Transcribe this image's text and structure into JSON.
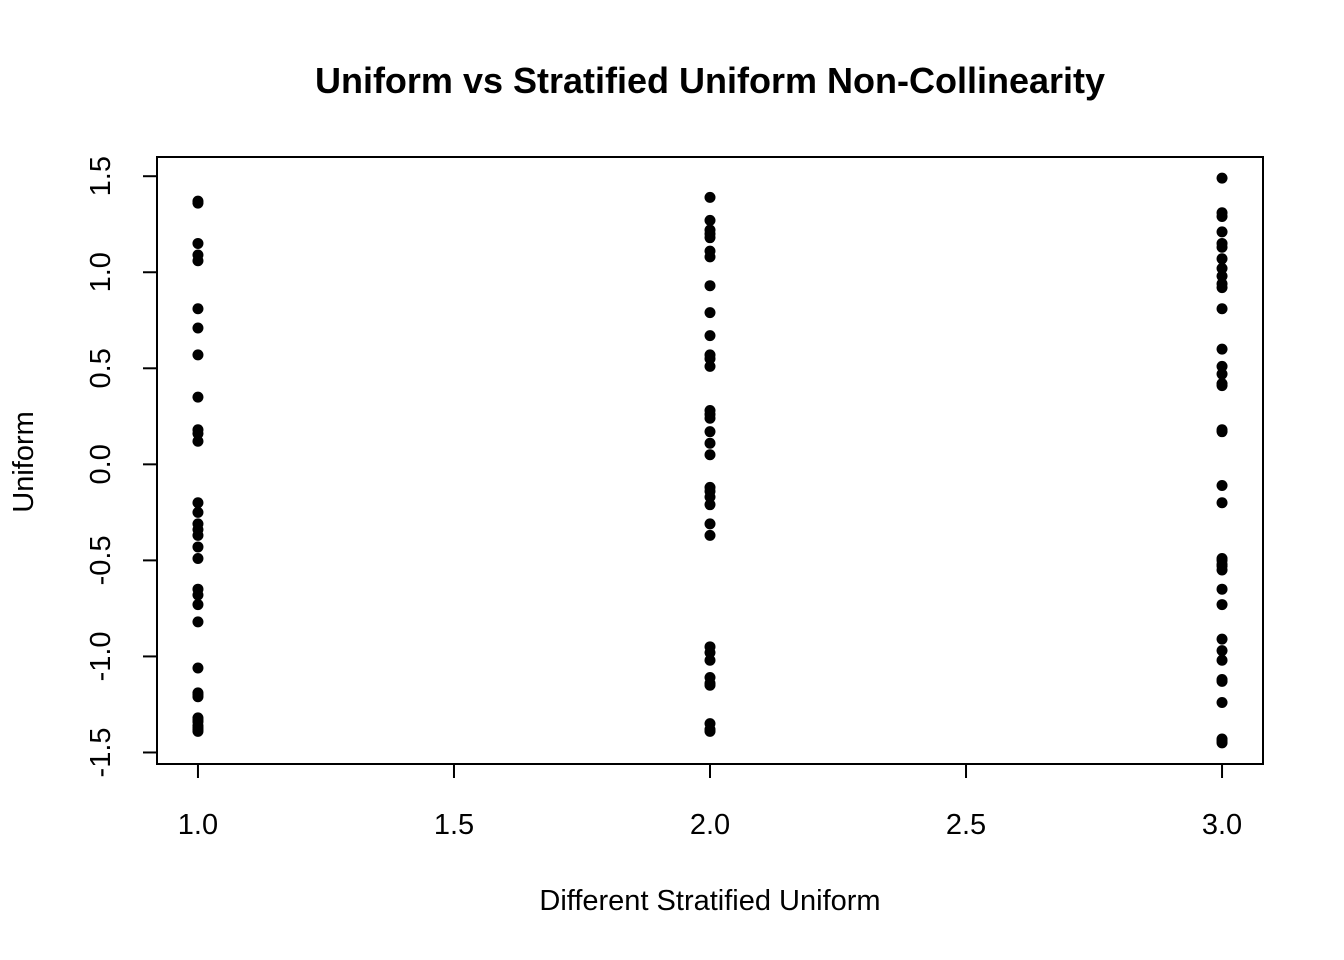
{
  "chart_data": {
    "type": "scatter",
    "title": "Uniform vs Stratified Uniform Non-Collinearity",
    "xlabel": "Different Stratified Uniform",
    "ylabel": "Uniform",
    "xlim": [
      0.92,
      3.08
    ],
    "ylim": [
      -1.56,
      1.6
    ],
    "x_ticks": [
      "1.0",
      "1.5",
      "2.0",
      "2.5",
      "3.0"
    ],
    "y_ticks": [
      "-1.5",
      "-1.0",
      "-0.5",
      "0.0",
      "0.5",
      "1.0",
      "1.5"
    ],
    "grid": false,
    "legend": "none",
    "point_color": "#000000",
    "series": [
      {
        "x": [
          1,
          1,
          1,
          1,
          1,
          1,
          1,
          1,
          1,
          1,
          1,
          1,
          1,
          1,
          1,
          1,
          1,
          1,
          1,
          1,
          1,
          1,
          1,
          1,
          1,
          1,
          1,
          1,
          1,
          1,
          1,
          1,
          1,
          1
        ],
        "y": [
          1.37,
          1.36,
          1.15,
          1.09,
          1.06,
          0.81,
          0.71,
          0.57,
          0.35,
          0.18,
          0.16,
          0.12,
          -0.2,
          -0.25,
          -0.31,
          -0.34,
          -0.37,
          -0.43,
          -0.49,
          -0.65,
          -0.68,
          -0.73,
          -0.82,
          -1.06,
          -1.19,
          -1.2,
          -1.21,
          -1.32,
          -1.34,
          -1.36,
          -1.38,
          -1.39,
          -1.37,
          -1.33
        ]
      },
      {
        "x": [
          2,
          2,
          2,
          2,
          2,
          2,
          2,
          2,
          2,
          2,
          2,
          2,
          2,
          2,
          2,
          2,
          2,
          2,
          2,
          2,
          2,
          2,
          2,
          2,
          2,
          2,
          2,
          2,
          2,
          2,
          2,
          2,
          2,
          2
        ],
        "y": [
          1.39,
          1.27,
          1.22,
          1.2,
          1.18,
          1.11,
          1.08,
          0.93,
          0.79,
          0.67,
          0.57,
          0.55,
          0.51,
          0.28,
          0.26,
          0.24,
          0.17,
          0.11,
          0.05,
          -0.12,
          -0.14,
          -0.17,
          -0.21,
          -0.31,
          -0.37,
          -0.95,
          -0.98,
          -1.02,
          -1.11,
          -1.14,
          -1.35,
          -1.39,
          -1.38,
          -1.15
        ]
      },
      {
        "x": [
          3,
          3,
          3,
          3,
          3,
          3,
          3,
          3,
          3,
          3,
          3,
          3,
          3,
          3,
          3,
          3,
          3,
          3,
          3,
          3,
          3,
          3,
          3,
          3,
          3,
          3,
          3,
          3,
          3,
          3,
          3,
          3,
          3,
          3,
          3,
          3,
          3
        ],
        "y": [
          1.49,
          1.31,
          1.29,
          1.21,
          1.15,
          1.13,
          1.07,
          1.02,
          0.98,
          0.94,
          0.92,
          0.81,
          0.6,
          0.51,
          0.47,
          0.41,
          0.42,
          0.18,
          0.17,
          -0.11,
          -0.2,
          -0.49,
          -0.52,
          -0.55,
          -0.65,
          -0.73,
          -0.91,
          -0.97,
          -1.02,
          -1.13,
          -1.24,
          -1.44,
          -1.45,
          -1.43,
          -1.12,
          -0.53,
          -0.5
        ]
      }
    ]
  }
}
